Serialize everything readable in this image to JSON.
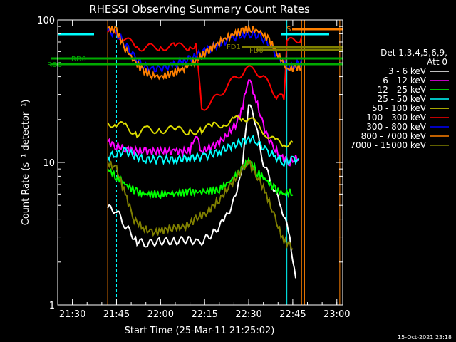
{
  "chart_data": {
    "type": "line",
    "title": "RHESSI Observing Summary Count Rates",
    "ylabel": "Count Rate (s⁻¹ detector⁻¹)",
    "xlabel": "Start Time (25-Mar-11 21:25:02)",
    "y_scale": "log",
    "ylim": [
      1,
      100
    ],
    "xlim": [
      "21:25",
      "23:02"
    ],
    "y_ticks": [
      {
        "value": 1,
        "label": "1"
      },
      {
        "value": 10,
        "label": "10"
      },
      {
        "value": 100,
        "label": "100"
      }
    ],
    "x_ticks": [
      {
        "value": "21:30",
        "label": "21:30"
      },
      {
        "value": "21:45",
        "label": "21:45"
      },
      {
        "value": "22:00",
        "label": "22:00"
      },
      {
        "value": "22:15",
        "label": "22:15"
      },
      {
        "value": "22:30",
        "label": "22:30"
      },
      {
        "value": "22:45",
        "label": "22:45"
      },
      {
        "value": "23:00",
        "label": "23:00"
      }
    ],
    "legend_header": [
      "Det 1,3,4,5,6,9,",
      "Att 0"
    ],
    "legend_position": "right",
    "series": [
      {
        "name": "3 - 6 keV",
        "color": "#ffffff",
        "points": [
          [
            "21:42",
            4.8
          ],
          [
            "21:45",
            4.6
          ],
          [
            "21:48",
            3.6
          ],
          [
            "21:52",
            2.8
          ],
          [
            "21:55",
            2.7
          ],
          [
            "22:00",
            2.8
          ],
          [
            "22:05",
            2.8
          ],
          [
            "22:10",
            2.9
          ],
          [
            "22:13",
            2.7
          ],
          [
            "22:18",
            3.2
          ],
          [
            "22:22",
            4.0
          ],
          [
            "22:26",
            6.0
          ],
          [
            "22:28",
            10
          ],
          [
            "22:30",
            26
          ],
          [
            "22:32",
            20
          ],
          [
            "22:35",
            10
          ],
          [
            "22:38",
            7
          ],
          [
            "22:41",
            5
          ],
          [
            "22:44",
            3
          ],
          [
            "22:46",
            1.5
          ]
        ]
      },
      {
        "name": "6 - 12 keV",
        "color": "#ff00ff",
        "points": [
          [
            "21:42",
            14
          ],
          [
            "21:45",
            13
          ],
          [
            "21:48",
            12.5
          ],
          [
            "21:52",
            12
          ],
          [
            "21:55",
            12
          ],
          [
            "22:00",
            12
          ],
          [
            "22:05",
            12
          ],
          [
            "22:10",
            12
          ],
          [
            "22:12",
            16
          ],
          [
            "22:14",
            12
          ],
          [
            "22:18",
            13
          ],
          [
            "22:22",
            15
          ],
          [
            "22:26",
            19
          ],
          [
            "22:28",
            25
          ],
          [
            "22:30",
            40
          ],
          [
            "22:32",
            30
          ],
          [
            "22:35",
            18
          ],
          [
            "22:38",
            13
          ],
          [
            "22:41",
            11
          ],
          [
            "22:44",
            10
          ],
          [
            "22:47",
            11
          ]
        ]
      },
      {
        "name": "12 - 25 keV",
        "color": "#00ff00",
        "points": [
          [
            "21:42",
            9
          ],
          [
            "21:45",
            8
          ],
          [
            "21:48",
            7
          ],
          [
            "21:52",
            6.2
          ],
          [
            "21:55",
            6.0
          ],
          [
            "22:00",
            6.0
          ],
          [
            "22:05",
            6.1
          ],
          [
            "22:10",
            6.2
          ],
          [
            "22:15",
            6.2
          ],
          [
            "22:20",
            6.5
          ],
          [
            "22:24",
            7.5
          ],
          [
            "22:28",
            9
          ],
          [
            "22:30",
            10.5
          ],
          [
            "22:33",
            8.5
          ],
          [
            "22:36",
            7.5
          ],
          [
            "22:39",
            6.5
          ],
          [
            "22:42",
            6.0
          ],
          [
            "22:45",
            6.3
          ]
        ]
      },
      {
        "name": "25 - 50 keV",
        "color": "#00ffff",
        "points": [
          [
            "21:42",
            11
          ],
          [
            "21:45",
            11.5
          ],
          [
            "21:48",
            12
          ],
          [
            "21:52",
            11
          ],
          [
            "21:55",
            10.5
          ],
          [
            "22:00",
            10.5
          ],
          [
            "22:05",
            10.5
          ],
          [
            "22:10",
            10.8
          ],
          [
            "22:15",
            11
          ],
          [
            "22:20",
            12
          ],
          [
            "22:24",
            13
          ],
          [
            "22:28",
            14
          ],
          [
            "22:30",
            15
          ],
          [
            "22:33",
            14
          ],
          [
            "22:36",
            12
          ],
          [
            "22:39",
            11
          ],
          [
            "22:42",
            10
          ],
          [
            "22:45",
            10.5
          ],
          [
            "22:47",
            10.5
          ]
        ]
      },
      {
        "name": "50 - 100 keV",
        "color": "#dddd00",
        "points": [
          [
            "21:42",
            19
          ],
          [
            "21:45",
            18.5
          ],
          [
            "21:48",
            18
          ],
          [
            "21:52",
            16
          ],
          [
            "21:55",
            17
          ],
          [
            "22:00",
            17
          ],
          [
            "22:05",
            17
          ],
          [
            "22:10",
            16.5
          ],
          [
            "22:14",
            17
          ],
          [
            "22:18",
            18
          ],
          [
            "22:22",
            19
          ],
          [
            "22:25",
            20
          ],
          [
            "22:28",
            20
          ],
          [
            "22:30",
            21
          ],
          [
            "22:33",
            18
          ],
          [
            "22:36",
            16
          ],
          [
            "22:39",
            14
          ],
          [
            "22:42",
            13.5
          ],
          [
            "22:45",
            14
          ]
        ]
      },
      {
        "name": "100 - 300 keV",
        "color": "#ff0000",
        "points": [
          [
            "21:42",
            82
          ],
          [
            "21:45",
            80
          ],
          [
            "21:48",
            73
          ],
          [
            "21:52",
            65
          ],
          [
            "21:55",
            64
          ],
          [
            "22:00",
            65
          ],
          [
            "22:05",
            65
          ],
          [
            "22:10",
            65
          ],
          [
            "22:12",
            68
          ],
          [
            "22:14",
            24
          ],
          [
            "22:17",
            26
          ],
          [
            "22:20",
            30
          ],
          [
            "22:23",
            35
          ],
          [
            "22:26",
            40
          ],
          [
            "22:29",
            45
          ],
          [
            "22:32",
            45
          ],
          [
            "22:35",
            40
          ],
          [
            "22:38",
            32
          ],
          [
            "22:40",
            29
          ],
          [
            "22:42",
            28
          ],
          [
            "22:43",
            70
          ],
          [
            "22:46",
            72
          ],
          [
            "22:48",
            75
          ]
        ]
      },
      {
        "name": "300 - 800 keV",
        "color": "#0000ff",
        "points": [
          [
            "21:42",
            84
          ],
          [
            "21:45",
            80
          ],
          [
            "21:48",
            68
          ],
          [
            "21:51",
            55
          ],
          [
            "21:54",
            48
          ],
          [
            "21:57",
            45
          ],
          [
            "22:00",
            46
          ],
          [
            "22:04",
            48
          ],
          [
            "22:08",
            52
          ],
          [
            "22:12",
            56
          ],
          [
            "22:16",
            62
          ],
          [
            "22:20",
            68
          ],
          [
            "22:24",
            74
          ],
          [
            "22:28",
            79
          ],
          [
            "22:31",
            80
          ],
          [
            "22:34",
            76
          ],
          [
            "22:37",
            68
          ],
          [
            "22:40",
            55
          ],
          [
            "22:43",
            47
          ],
          [
            "22:46",
            48
          ],
          [
            "22:48",
            52
          ]
        ]
      },
      {
        "name": "800 - 7000 keV",
        "color": "#ff8000",
        "points": [
          [
            "21:42",
            88
          ],
          [
            "21:45",
            84
          ],
          [
            "21:48",
            63
          ],
          [
            "21:51",
            52
          ],
          [
            "21:54",
            44
          ],
          [
            "21:57",
            41
          ],
          [
            "22:00",
            40
          ],
          [
            "22:04",
            42
          ],
          [
            "22:08",
            46
          ],
          [
            "22:12",
            52
          ],
          [
            "22:16",
            60
          ],
          [
            "22:20",
            70
          ],
          [
            "22:24",
            78
          ],
          [
            "22:28",
            84
          ],
          [
            "22:31",
            87
          ],
          [
            "22:34",
            82
          ],
          [
            "22:37",
            72
          ],
          [
            "22:40",
            58
          ],
          [
            "22:43",
            45
          ],
          [
            "22:46",
            46
          ],
          [
            "22:48",
            48
          ]
        ]
      },
      {
        "name": "7000 - 15000 keV",
        "color": "#808000",
        "points": [
          [
            "21:42",
            10
          ],
          [
            "21:45",
            9
          ],
          [
            "21:48",
            6
          ],
          [
            "21:51",
            4
          ],
          [
            "21:54",
            3.5
          ],
          [
            "21:57",
            3.2
          ],
          [
            "22:00",
            3.3
          ],
          [
            "22:04",
            3.5
          ],
          [
            "22:08",
            3.5
          ],
          [
            "22:12",
            4
          ],
          [
            "22:16",
            4.5
          ],
          [
            "22:20",
            5.5
          ],
          [
            "22:24",
            7
          ],
          [
            "22:28",
            9
          ],
          [
            "22:30",
            10
          ],
          [
            "22:33",
            8
          ],
          [
            "22:36",
            6
          ],
          [
            "22:39",
            4
          ],
          [
            "22:42",
            2.8
          ],
          [
            "22:45",
            2.6
          ]
        ]
      }
    ],
    "annotations": [
      {
        "label": "RD0",
        "color": "#00aa00"
      },
      {
        "label": "RD6",
        "color": "#00aa00"
      },
      {
        "label": "FD1",
        "color": "#808000"
      },
      {
        "label": "FD0",
        "color": "#808000"
      },
      {
        "label": "S",
        "color": "#ff8000"
      }
    ],
    "timestamp": "15-Oct-2021 23:18"
  }
}
